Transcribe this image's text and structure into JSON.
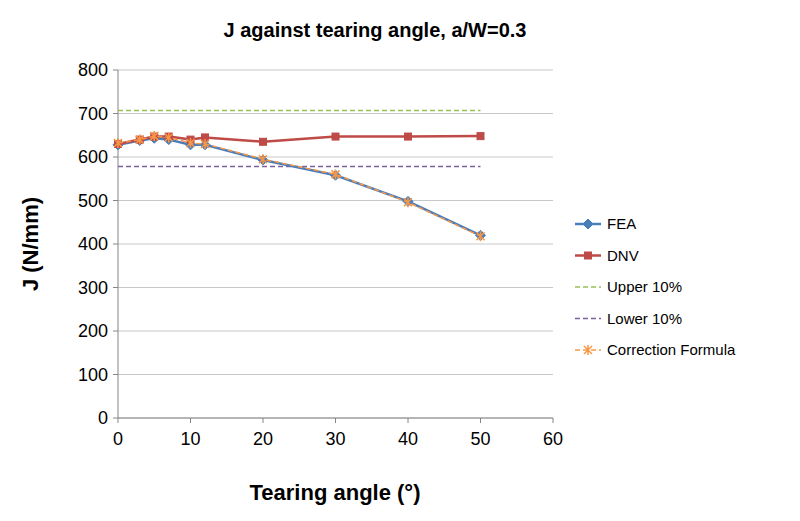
{
  "chart_data": {
    "type": "line",
    "title": "J against tearing angle, a/W=0.3",
    "x_label": "Tearing angle (°)",
    "y_label": "J (N/mm)",
    "x": [
      0,
      3,
      5,
      7,
      10,
      12,
      20,
      30,
      40,
      50
    ],
    "series": [
      {
        "name": "FEA",
        "color": "#4a7ebb",
        "marker": "diamond",
        "line_style": "solid",
        "values": [
          628,
          638,
          643,
          640,
          628,
          628,
          593,
          558,
          498,
          420
        ]
      },
      {
        "name": "DNV",
        "color": "#be4b48",
        "marker": "square",
        "line_style": "solid",
        "values": [
          630,
          640,
          647,
          647,
          640,
          645,
          635,
          647,
          647,
          648
        ]
      },
      {
        "name": "Upper 10%",
        "color": "#98c155",
        "marker": "none",
        "line_style": "dashed",
        "values": [
          707,
          707,
          707,
          707,
          707,
          707,
          707,
          707,
          707,
          707
        ]
      },
      {
        "name": "Lower 10%",
        "color": "#7d5fa0",
        "marker": "none",
        "line_style": "dashed",
        "values": [
          578,
          578,
          578,
          578,
          578,
          578,
          578,
          578,
          578,
          578
        ]
      },
      {
        "name": "Correction Formula",
        "color": "#f79646",
        "marker": "x",
        "line_style": "dashed",
        "values": [
          632,
          640,
          648,
          645,
          632,
          630,
          595,
          560,
          496,
          418
        ]
      }
    ],
    "xlim": [
      0,
      60
    ],
    "xticks": [
      0,
      10,
      20,
      30,
      40,
      50,
      60
    ],
    "ylim": [
      0,
      800
    ],
    "yticks": [
      0,
      100,
      200,
      300,
      400,
      500,
      600,
      700,
      800
    ],
    "grid": true,
    "legend": "right"
  }
}
